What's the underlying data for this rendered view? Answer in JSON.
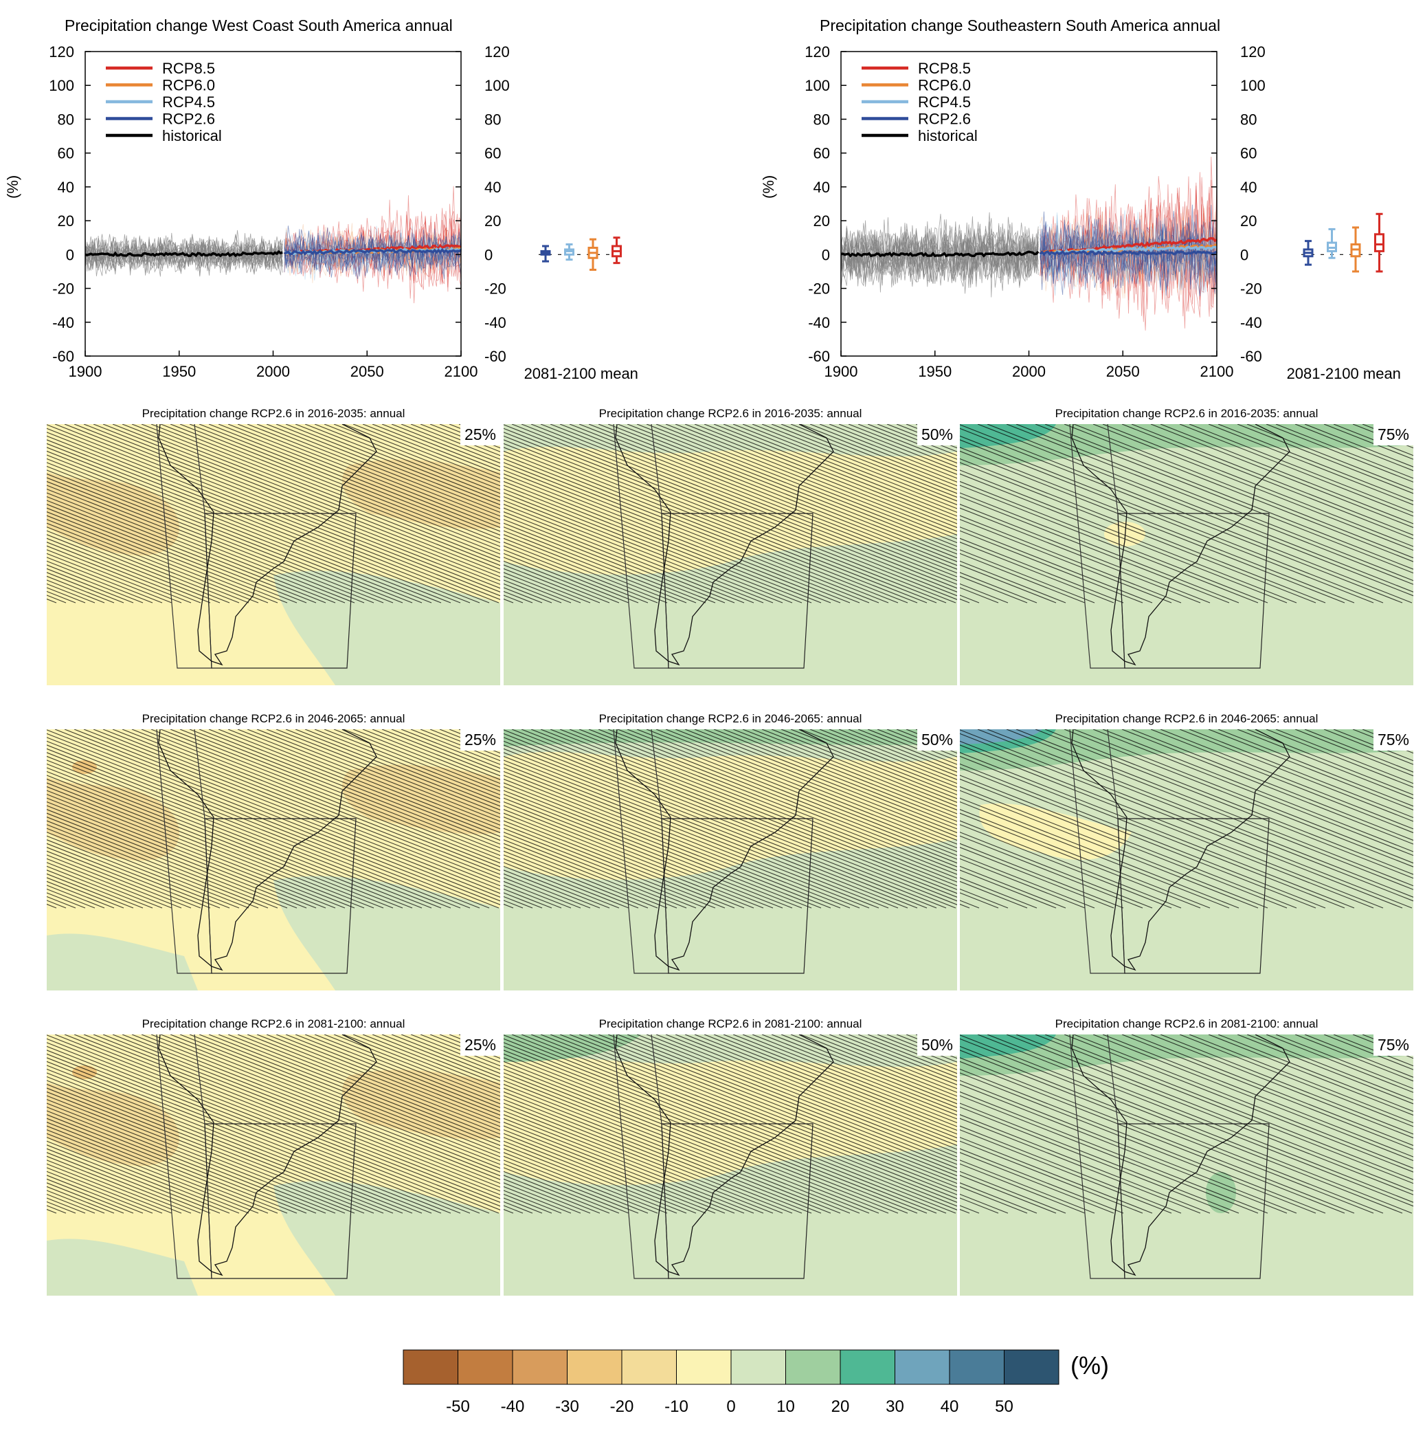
{
  "timeseries": [
    {
      "title": "Precipitation change West Coast South America annual",
      "ylabel": "(%)",
      "box_label": "2081-2100 mean"
    },
    {
      "title": "Precipitation change Southeastern South America annual",
      "ylabel": "(%)",
      "box_label": "2081-2100 mean"
    }
  ],
  "legend": [
    {
      "label": "RCP8.5",
      "color": "#d62b25"
    },
    {
      "label": "RCP6.0",
      "color": "#e98534"
    },
    {
      "label": "RCP4.5",
      "color": "#86b8de"
    },
    {
      "label": "RCP2.6",
      "color": "#2f4c9a"
    },
    {
      "label": "historical",
      "color": "#000000"
    }
  ],
  "maps": {
    "titles": [
      "Precipitation change RCP2.6 in 2016-2035: annual",
      "Precipitation change RCP2.6 in 2046-2065: annual",
      "Precipitation change RCP2.6 in 2081-2100: annual"
    ],
    "percentiles": [
      "25%",
      "50%",
      "75%"
    ]
  },
  "colorbar": {
    "colors": [
      "#a6612e",
      "#c27d40",
      "#d89c5c",
      "#eec67c",
      "#f3dc99",
      "#fbf3b4",
      "#d4e6c1",
      "#9fcf9f",
      "#4fb894",
      "#6fa4bc",
      "#4a7c98",
      "#2d5571"
    ],
    "labels": [
      "-50",
      "-40",
      "-30",
      "-20",
      "-10",
      "0",
      "10",
      "20",
      "30",
      "40",
      "50"
    ],
    "unit": "(%)"
  },
  "chart_data": [
    {
      "type": "line",
      "title": "Precipitation change West Coast South America annual",
      "ylabel": "(%)",
      "xlim": [
        1900,
        2100
      ],
      "ylim": [
        -60,
        120
      ],
      "xticks": [
        1900,
        1950,
        2000,
        2050,
        2100
      ],
      "yticks": [
        -60,
        -40,
        -20,
        0,
        20,
        40,
        60,
        80,
        100,
        120
      ],
      "legend_position": "top-left",
      "series": [
        {
          "name": "historical",
          "x": [
            1900,
            1925,
            1950,
            1975,
            2005
          ],
          "y": [
            0,
            0,
            0,
            0,
            1
          ]
        },
        {
          "name": "RCP2.6",
          "x": [
            2006,
            2050,
            2100
          ],
          "y": [
            1,
            2,
            2
          ]
        },
        {
          "name": "RCP4.5",
          "x": [
            2006,
            2050,
            2100
          ],
          "y": [
            1,
            2,
            3
          ]
        },
        {
          "name": "RCP6.0",
          "x": [
            2006,
            2050,
            2100
          ],
          "y": [
            1,
            2,
            3
          ]
        },
        {
          "name": "RCP8.5",
          "x": [
            2006,
            2050,
            2100
          ],
          "y": [
            1,
            3,
            5
          ]
        }
      ],
      "boxes_2081_2100_mean": [
        {
          "name": "RCP2.6",
          "min": -4,
          "q1": 0,
          "median": 1,
          "q3": 2,
          "max": 5
        },
        {
          "name": "RCP4.5",
          "min": -3,
          "q1": 0,
          "median": 2,
          "q3": 3,
          "max": 6
        },
        {
          "name": "RCP6.0",
          "min": -9,
          "q1": -2,
          "median": 1,
          "q3": 4,
          "max": 9
        },
        {
          "name": "RCP8.5",
          "min": -5,
          "q1": -1,
          "median": 2,
          "q3": 5,
          "max": 10
        }
      ]
    },
    {
      "type": "line",
      "title": "Precipitation change Southeastern South America annual",
      "ylabel": "(%)",
      "xlim": [
        1900,
        2100
      ],
      "ylim": [
        -60,
        120
      ],
      "xticks": [
        1900,
        1950,
        2000,
        2050,
        2100
      ],
      "yticks": [
        -60,
        -40,
        -20,
        0,
        20,
        40,
        60,
        80,
        100,
        120
      ],
      "legend_position": "top-left",
      "series": [
        {
          "name": "historical",
          "x": [
            1900,
            1925,
            1950,
            1975,
            2005
          ],
          "y": [
            0,
            0,
            0,
            0,
            1
          ]
        },
        {
          "name": "RCP2.6",
          "x": [
            2006,
            2050,
            2100
          ],
          "y": [
            1,
            1,
            1
          ]
        },
        {
          "name": "RCP4.5",
          "x": [
            2006,
            2050,
            2100
          ],
          "y": [
            1,
            3,
            4
          ]
        },
        {
          "name": "RCP6.0",
          "x": [
            2006,
            2050,
            2100
          ],
          "y": [
            1,
            3,
            5
          ]
        },
        {
          "name": "RCP8.5",
          "x": [
            2006,
            2050,
            2100
          ],
          "y": [
            1,
            5,
            9
          ]
        }
      ],
      "boxes_2081_2100_mean": [
        {
          "name": "RCP2.6",
          "min": -6,
          "q1": -1,
          "median": 1,
          "q3": 3,
          "max": 8
        },
        {
          "name": "RCP4.5",
          "min": -2,
          "q1": 2,
          "median": 4,
          "q3": 7,
          "max": 15
        },
        {
          "name": "RCP6.0",
          "min": -10,
          "q1": -1,
          "median": 3,
          "q3": 6,
          "max": 16
        },
        {
          "name": "RCP8.5",
          "min": -10,
          "q1": 2,
          "median": 6,
          "q3": 12,
          "max": 24
        }
      ]
    }
  ]
}
